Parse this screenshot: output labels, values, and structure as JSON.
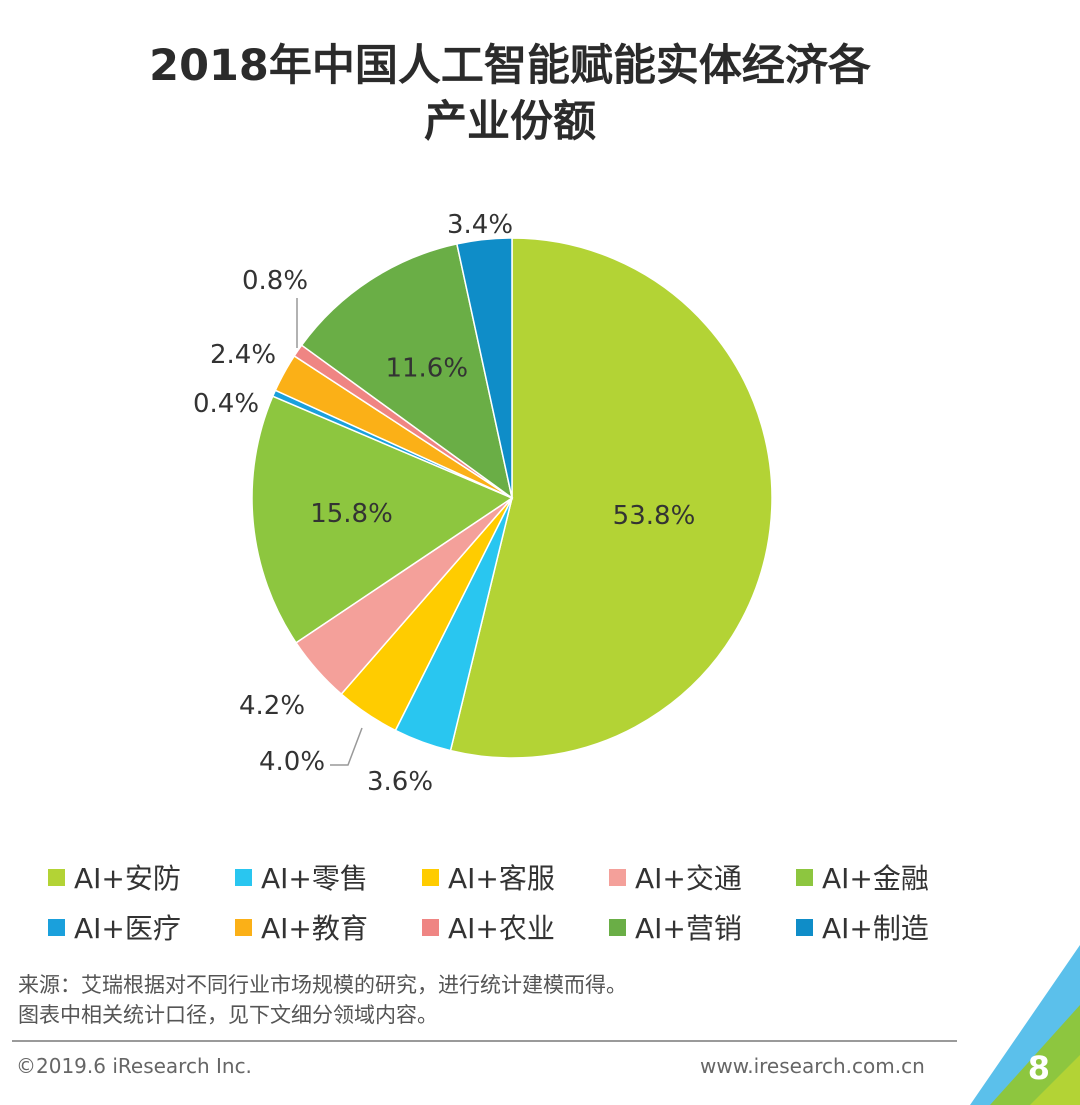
{
  "header": {
    "title_line1": "2018年中国人工智能赋能实体经济各",
    "title_line2": "产业份额"
  },
  "chart_data": {
    "type": "pie",
    "title": "2018年中国人工智能赋能实体经济各产业份额",
    "start": "12 o'clock, clockwise",
    "slices": [
      {
        "label": "AI+安防",
        "value": 53.8,
        "display": "53.8%",
        "color": "#b3d335"
      },
      {
        "label": "AI+零售",
        "value": 3.6,
        "display": "3.6%",
        "color": "#29c6f0"
      },
      {
        "label": "AI+客服",
        "value": 4.0,
        "display": "4.0%",
        "color": "#ffcc00"
      },
      {
        "label": "AI+交通",
        "value": 4.2,
        "display": "4.2%",
        "color": "#f4a09a"
      },
      {
        "label": "AI+金融",
        "value": 15.8,
        "display": "15.8%",
        "color": "#8dc63f"
      },
      {
        "label": "AI+医疗",
        "value": 0.4,
        "display": "0.4%",
        "color": "#1aa0dc"
      },
      {
        "label": "AI+教育",
        "value": 2.4,
        "display": "2.4%",
        "color": "#fbb017"
      },
      {
        "label": "AI+农业",
        "value": 0.8,
        "display": "0.8%",
        "color": "#ef8583"
      },
      {
        "label": "AI+营销",
        "value": 11.6,
        "display": "11.6%",
        "color": "#6aae46"
      },
      {
        "label": "AI+制造",
        "value": 3.4,
        "display": "3.4%",
        "color": "#0f8dc8"
      }
    ]
  },
  "legend": [
    {
      "label": "AI+安防",
      "color": "#b3d335"
    },
    {
      "label": "AI+零售",
      "color": "#29c6f0"
    },
    {
      "label": "AI+客服",
      "color": "#ffcc00"
    },
    {
      "label": "AI+交通",
      "color": "#f4a09a"
    },
    {
      "label": "AI+金融",
      "color": "#8dc63f"
    },
    {
      "label": "AI+医疗",
      "color": "#1aa0dc"
    },
    {
      "label": "AI+教育",
      "color": "#fbb017"
    },
    {
      "label": "AI+农业",
      "color": "#ef8583"
    },
    {
      "label": "AI+营销",
      "color": "#6aae46"
    },
    {
      "label": "AI+制造",
      "color": "#0f8dc8"
    }
  ],
  "source": {
    "line1": "来源：艾瑞根据对不同行业市场规模的研究，进行统计建模而得。",
    "line2": "图表中相关统计口径，见下文细分领域内容。"
  },
  "footer": {
    "copyright": "©2019.6 iResearch Inc.",
    "url": "www.iresearch.com.cn",
    "page_number": "8"
  }
}
